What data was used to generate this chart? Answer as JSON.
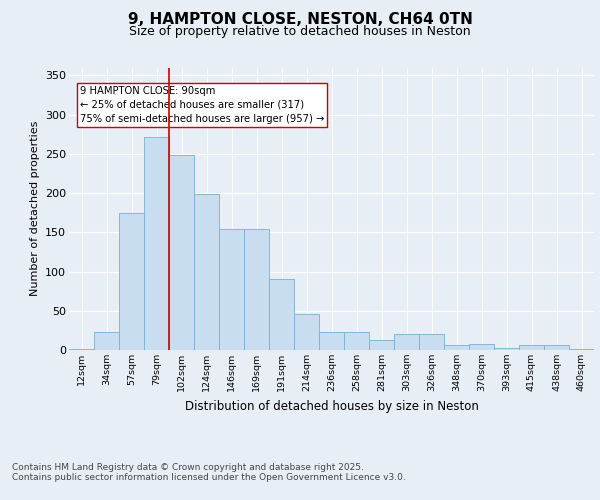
{
  "title1": "9, HAMPTON CLOSE, NESTON, CH64 0TN",
  "title2": "Size of property relative to detached houses in Neston",
  "xlabel": "Distribution of detached houses by size in Neston",
  "ylabel": "Number of detached properties",
  "categories": [
    "12sqm",
    "34sqm",
    "57sqm",
    "79sqm",
    "102sqm",
    "124sqm",
    "146sqm",
    "169sqm",
    "191sqm",
    "214sqm",
    "236sqm",
    "258sqm",
    "281sqm",
    "303sqm",
    "326sqm",
    "348sqm",
    "370sqm",
    "393sqm",
    "415sqm",
    "438sqm",
    "460sqm"
  ],
  "values": [
    1,
    23,
    175,
    271,
    248,
    199,
    154,
    154,
    90,
    46,
    23,
    23,
    13,
    21,
    21,
    6,
    8,
    3,
    6,
    6,
    1
  ],
  "bar_color": "#c9ddf0",
  "bar_edge_color": "#7aafd4",
  "vline_color": "#cc0000",
  "vline_x_index": 3.5,
  "annotation_line1": "9 HAMPTON CLOSE: 90sqm",
  "annotation_line2": "← 25% of detached houses are smaller (317)",
  "annotation_line3": "75% of semi-detached houses are larger (957) →",
  "ylim": [
    0,
    360
  ],
  "yticks": [
    0,
    50,
    100,
    150,
    200,
    250,
    300,
    350
  ],
  "footer1": "Contains HM Land Registry data © Crown copyright and database right 2025.",
  "footer2": "Contains public sector information licensed under the Open Government Licence v3.0.",
  "bg_color": "#e8eef5",
  "plot_bg_color": "#e8eef5",
  "title_fontsize": 11,
  "subtitle_fontsize": 9
}
